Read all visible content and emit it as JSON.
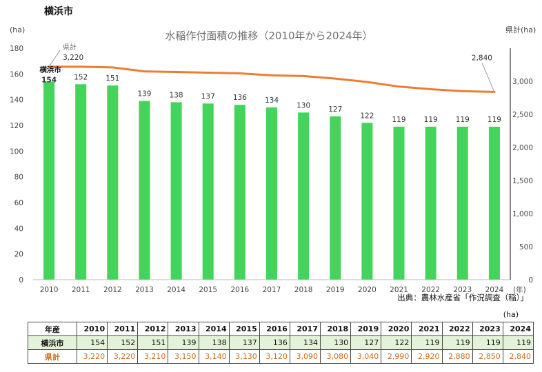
{
  "page_heading": "横浜市",
  "source_note": "出典：農林水産省「作況調査（稲）」",
  "table_unit": "(ha)",
  "colors": {
    "bar": "#44d45c",
    "line": "#ed7d31",
    "axis_text": "#444444",
    "title_text": "#707070",
    "pref_text": "#d06a1c"
  },
  "chart_data": {
    "type": "bar",
    "title": "水稲作付面積の推移（2010年から2024年）",
    "y_left_unit": "(ha)",
    "y_right_unit": "県計(ha)",
    "x_unit": "(年)",
    "categories": [
      "2010",
      "2011",
      "2012",
      "2013",
      "2014",
      "2015",
      "2016",
      "2017",
      "2018",
      "2019",
      "2020",
      "2021",
      "2022",
      "2023",
      "2024"
    ],
    "ylim_left": [
      0,
      180
    ],
    "ylim_right": [
      0,
      3500
    ],
    "y_left_ticks": [
      "0",
      "20",
      "40",
      "60",
      "80",
      "100",
      "120",
      "140",
      "160",
      "180"
    ],
    "y_right_ticks": [
      "0",
      "500",
      "1,000",
      "1,500",
      "2,000",
      "2,500",
      "3,000"
    ],
    "series": [
      {
        "name": "横浜市",
        "type": "bar",
        "axis": "left",
        "values": [
          154,
          152,
          151,
          139,
          138,
          137,
          136,
          134,
          130,
          127,
          122,
          119,
          119,
          119,
          119
        ],
        "labels": [
          "154",
          "152",
          "151",
          "139",
          "138",
          "137",
          "136",
          "134",
          "130",
          "127",
          "122",
          "119",
          "119",
          "119",
          "119"
        ]
      },
      {
        "name": "県計",
        "type": "line",
        "axis": "right",
        "values": [
          3220,
          3220,
          3210,
          3150,
          3140,
          3130,
          3120,
          3090,
          3080,
          3040,
          2990,
          2920,
          2880,
          2850,
          2840
        ],
        "first_label": "3,220",
        "last_label": "2,840"
      }
    ],
    "grid": false,
    "legend": "none"
  },
  "table": {
    "header_label": "年産",
    "years": [
      "2010",
      "2011",
      "2012",
      "2013",
      "2014",
      "2015",
      "2016",
      "2017",
      "2018",
      "2019",
      "2020",
      "2021",
      "2022",
      "2023",
      "2024"
    ],
    "rows": [
      {
        "label": "横浜市",
        "values": [
          "154",
          "152",
          "151",
          "139",
          "138",
          "137",
          "136",
          "134",
          "130",
          "127",
          "122",
          "119",
          "119",
          "119",
          "119"
        ]
      },
      {
        "label": "県計",
        "values": [
          "3,220",
          "3,220",
          "3,210",
          "3,150",
          "3,140",
          "3,130",
          "3,120",
          "3,090",
          "3,080",
          "3,040",
          "2,990",
          "2,920",
          "2,880",
          "2,850",
          "2,840"
        ]
      }
    ]
  }
}
